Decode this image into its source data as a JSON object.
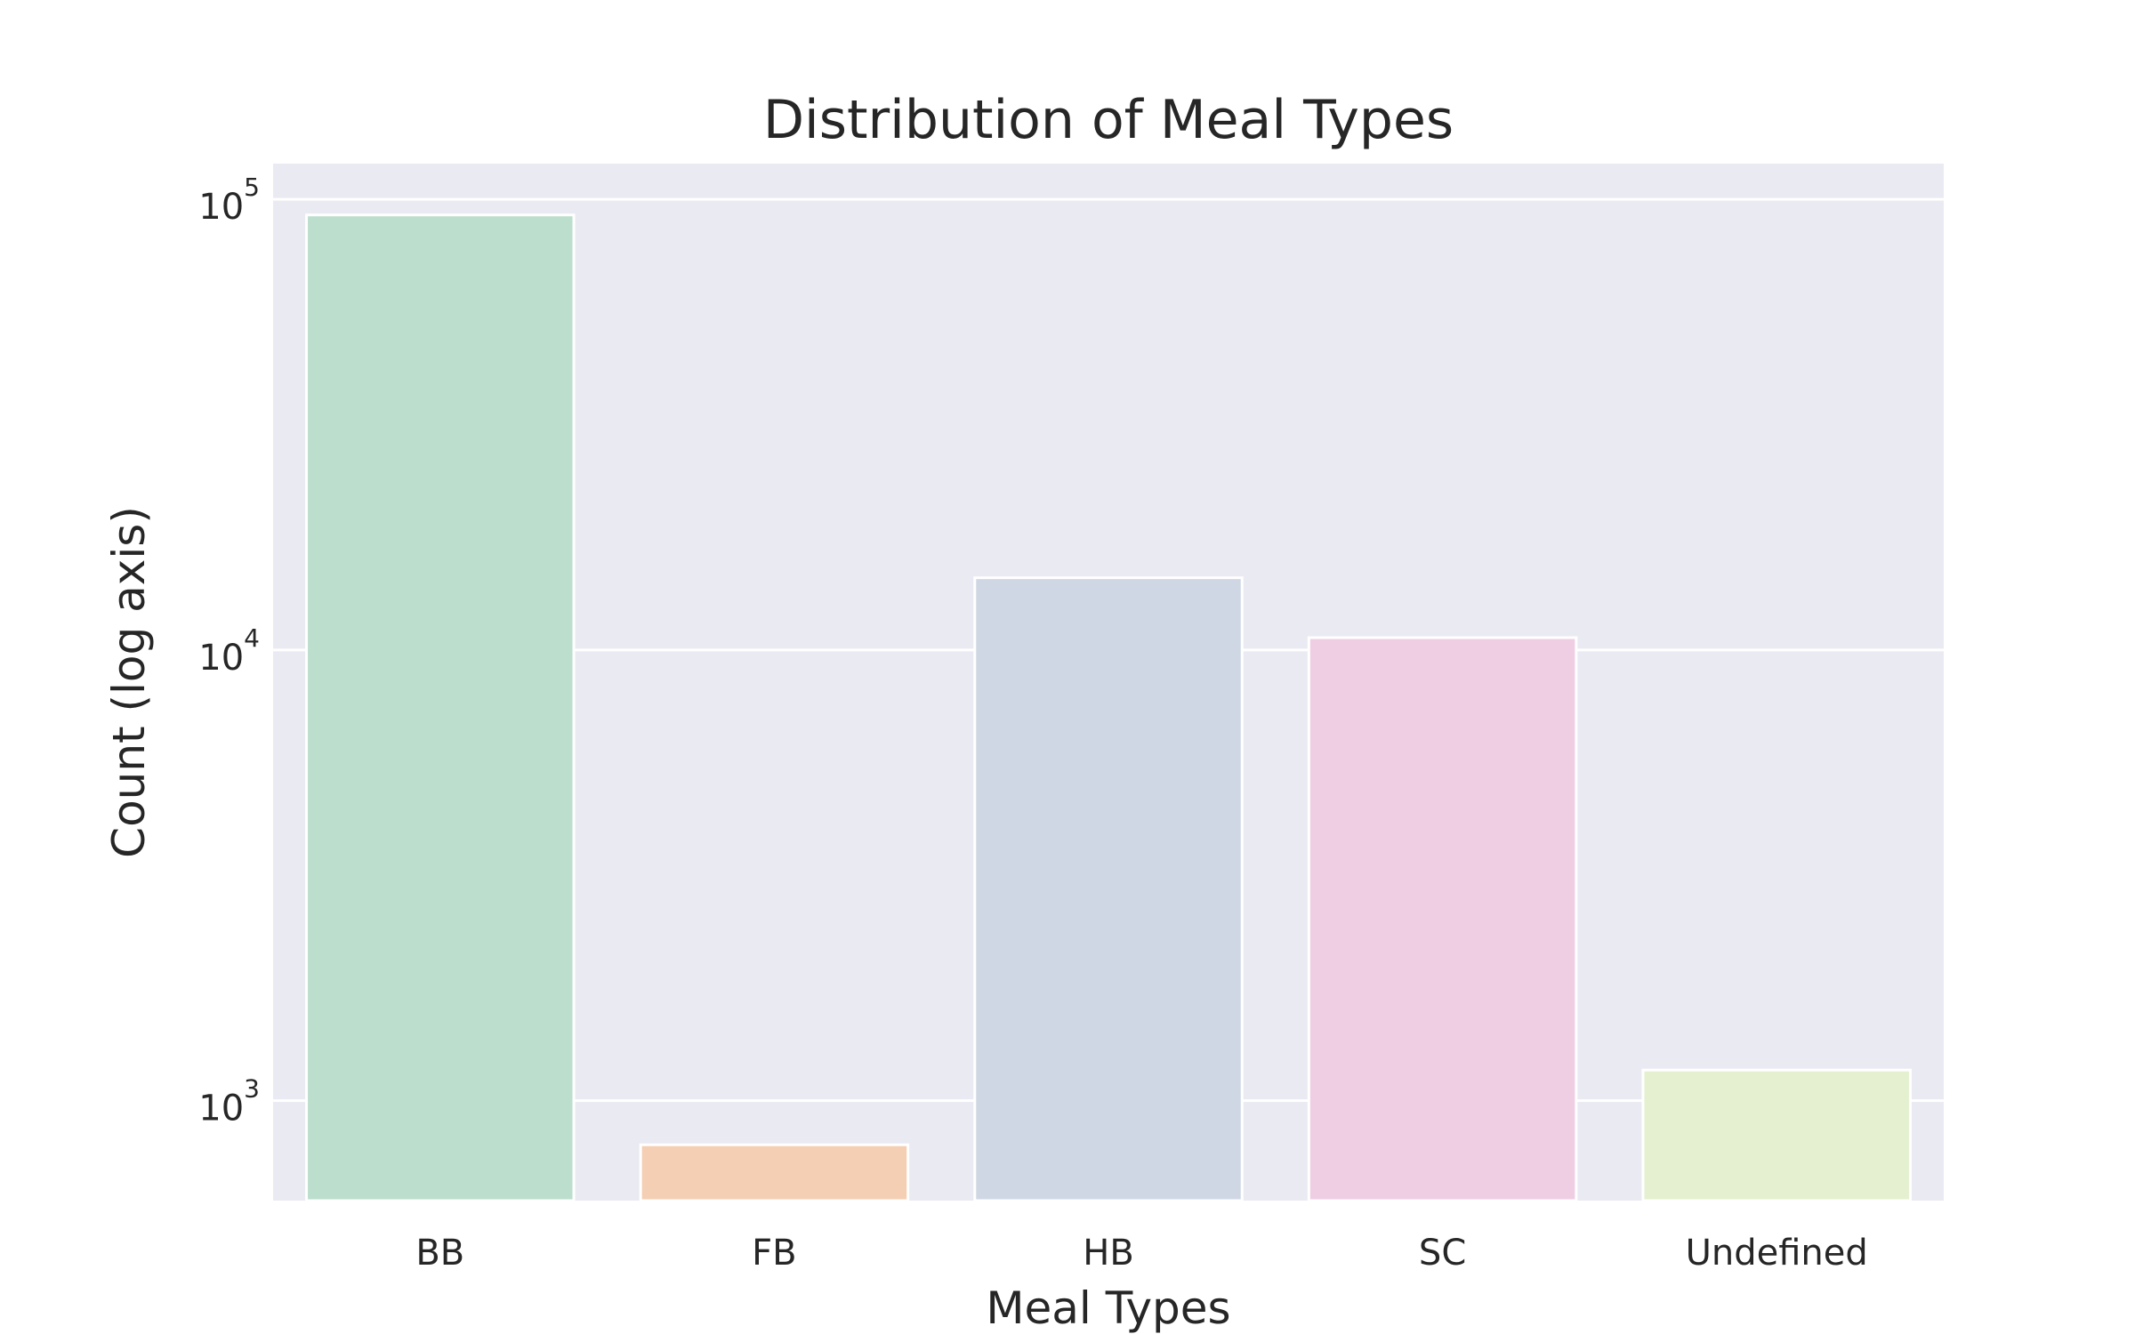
{
  "chart_data": {
    "type": "bar",
    "title": "Distribution of Meal Types",
    "xlabel": "Meal Types",
    "ylabel": "Count (log axis)",
    "y_scale": "log",
    "ylim": [
      600,
      120000
    ],
    "y_ticks": [
      {
        "value": 1000,
        "base": "10",
        "exp": "3"
      },
      {
        "value": 10000,
        "base": "10",
        "exp": "4"
      },
      {
        "value": 100000,
        "base": "10",
        "exp": "5"
      }
    ],
    "categories": [
      "BB",
      "FB",
      "HB",
      "SC",
      "Undefined"
    ],
    "values": [
      92310,
      798,
      14463,
      10650,
      1169
    ],
    "colors": [
      "#bbdecd",
      "#f4cfb3",
      "#d0d7e4",
      "#efcee3",
      "#e4f0d0"
    ],
    "grid": true,
    "legend": "none",
    "background": "#eaeaf2",
    "grid_color": "#ffffff"
  }
}
